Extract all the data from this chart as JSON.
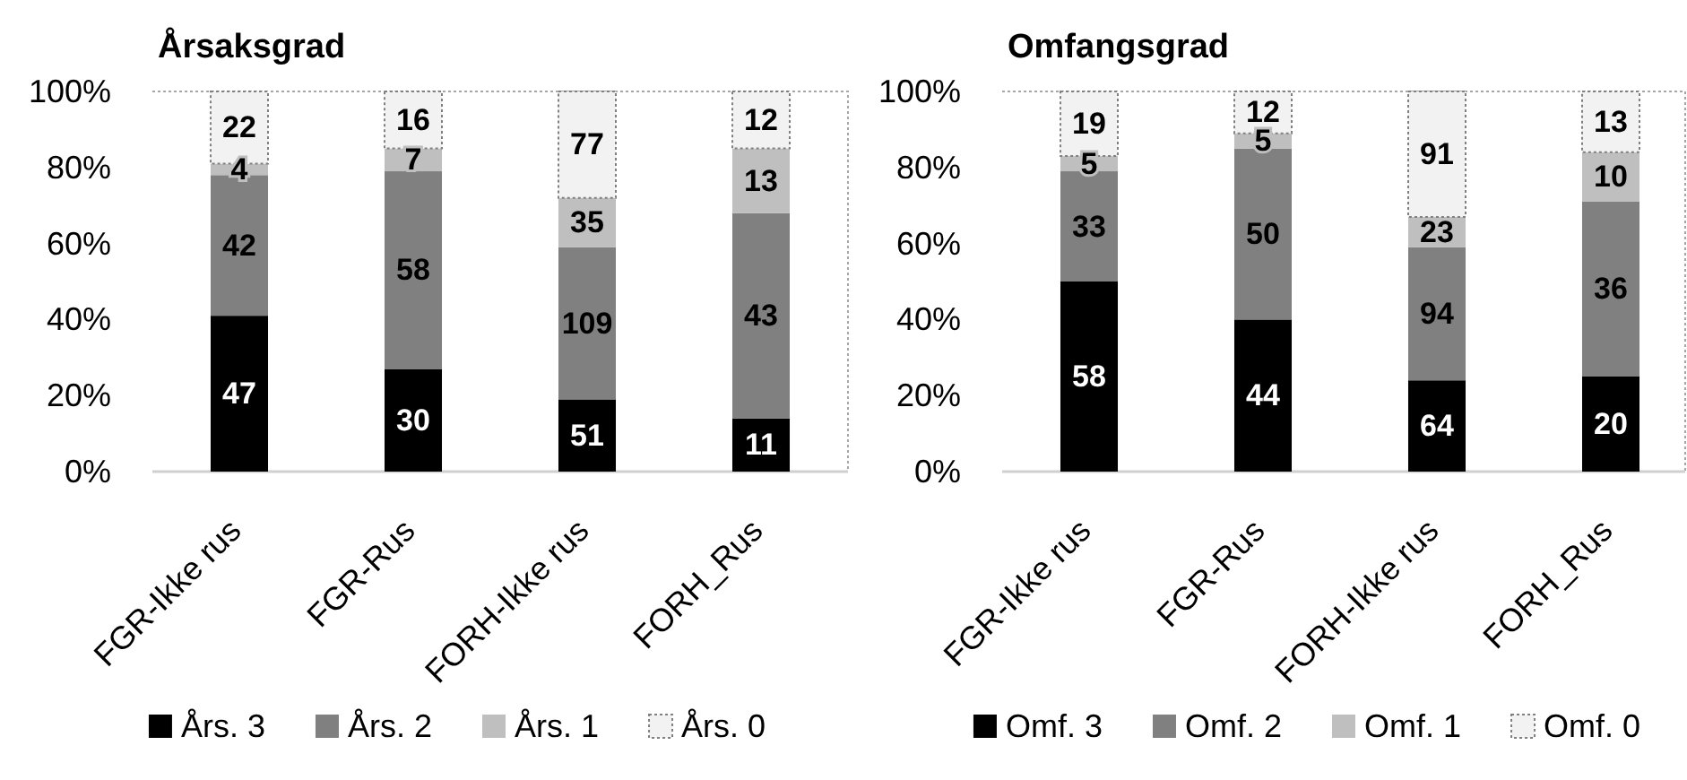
{
  "chart_data": [
    {
      "type": "bar",
      "stacked": true,
      "title": "Årsaksgrad",
      "categories": [
        "FGR-Ikke rus",
        "FGR-Rus",
        "FORH-Ikke rus",
        "FORH_Rus"
      ],
      "series": [
        {
          "name": "Års. 3",
          "color": "#000000",
          "values": [
            41,
            27,
            19,
            14
          ]
        },
        {
          "name": "Års. 2",
          "color": "#808080",
          "values": [
            37,
            52,
            40,
            54
          ]
        },
        {
          "name": "Års. 1",
          "color": "#bfbfbf",
          "values": [
            3,
            6,
            13,
            17
          ]
        },
        {
          "name": "Års. 0",
          "color": "#f2f2f2",
          "line_style": "dotted",
          "values": [
            19,
            15,
            28,
            15
          ]
        }
      ],
      "ylim": [
        0,
        100
      ],
      "yticks": [
        {
          "value": 0,
          "label": "0%"
        },
        {
          "value": 20,
          "label": "20%"
        },
        {
          "value": 40,
          "label": "40%"
        },
        {
          "value": 60,
          "label": "60%"
        },
        {
          "value": 80,
          "label": "80%"
        },
        {
          "value": 100,
          "label": "100%"
        }
      ],
      "legend": "bottom",
      "annotations": [
        "47",
        "42",
        "4",
        "22",
        "30",
        "58",
        "7",
        "16",
        "51",
        "109",
        "35",
        "77",
        "11",
        "43",
        "13",
        "12"
      ]
    },
    {
      "type": "bar",
      "stacked": true,
      "title": "Omfangsgrad",
      "categories": [
        "FGR-Ikke rus",
        "FGR-Rus",
        "FORH-Ikke rus",
        "FORH_Rus"
      ],
      "series": [
        {
          "name": "Omf. 3",
          "color": "#000000",
          "values": [
            50,
            40,
            24,
            25
          ]
        },
        {
          "name": "Omf. 2",
          "color": "#808080",
          "values": [
            29,
            45,
            35,
            46
          ]
        },
        {
          "name": "Omf. 1",
          "color": "#bfbfbf",
          "values": [
            4,
            4,
            8,
            13
          ]
        },
        {
          "name": "Omf. 0",
          "color": "#f2f2f2",
          "line_style": "dotted",
          "values": [
            17,
            11,
            33,
            16
          ]
        }
      ],
      "ylim": [
        0,
        100
      ],
      "yticks": [
        {
          "value": 0,
          "label": "0%"
        },
        {
          "value": 20,
          "label": "20%"
        },
        {
          "value": 40,
          "label": "40%"
        },
        {
          "value": 60,
          "label": "60%"
        },
        {
          "value": 80,
          "label": "80%"
        },
        {
          "value": 100,
          "label": "100%"
        }
      ],
      "legend": "bottom",
      "annotations": [
        "58",
        "33",
        "5",
        "19",
        "44",
        "50",
        "5",
        "12",
        "64",
        "94",
        "23",
        "91",
        "20",
        "36",
        "10",
        "13"
      ]
    }
  ]
}
